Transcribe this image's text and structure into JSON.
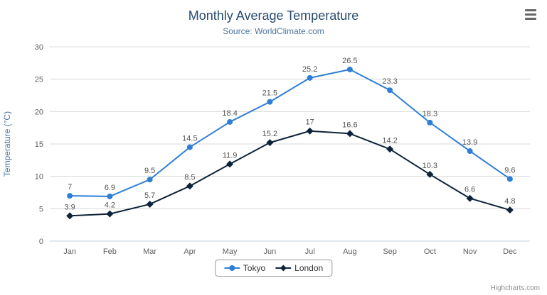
{
  "title": "Monthly Average Temperature",
  "subtitle": "Source: WorldClimate.com",
  "credits": "Highcharts.com",
  "colors": {
    "title": "#274b6d",
    "subtitle": "#4d759e",
    "axis_title": "#4d759e",
    "axis_labels": "#606060",
    "gridline": "#d8d8d8",
    "axis_line": "#c0d0e0",
    "data_labels": "#555555"
  },
  "chart_data": {
    "type": "line",
    "title": "Monthly Average Temperature",
    "subtitle": "Source: WorldClimate.com",
    "categories": [
      "Jan",
      "Feb",
      "Mar",
      "Apr",
      "May",
      "Jun",
      "Jul",
      "Aug",
      "Sep",
      "Oct",
      "Nov",
      "Dec"
    ],
    "series": [
      {
        "name": "Tokyo",
        "color": "#2f7ed8",
        "marker": "circle",
        "values": [
          7,
          6.9,
          9.5,
          14.5,
          18.4,
          21.5,
          25.2,
          26.5,
          23.3,
          18.3,
          13.9,
          9.6
        ]
      },
      {
        "name": "London",
        "color": "#0d233a",
        "marker": "diamond",
        "values": [
          3.9,
          4.2,
          5.7,
          8.5,
          11.9,
          15.2,
          17,
          16.6,
          14.2,
          10.3,
          6.6,
          4.8
        ]
      }
    ],
    "xlabel": "",
    "ylabel": "Temperature (°C)",
    "ylim": [
      0,
      30
    ],
    "yticks": [
      0,
      5,
      10,
      15,
      20,
      25,
      30
    ],
    "grid": true,
    "legend_position": "bottom",
    "data_labels": true
  }
}
